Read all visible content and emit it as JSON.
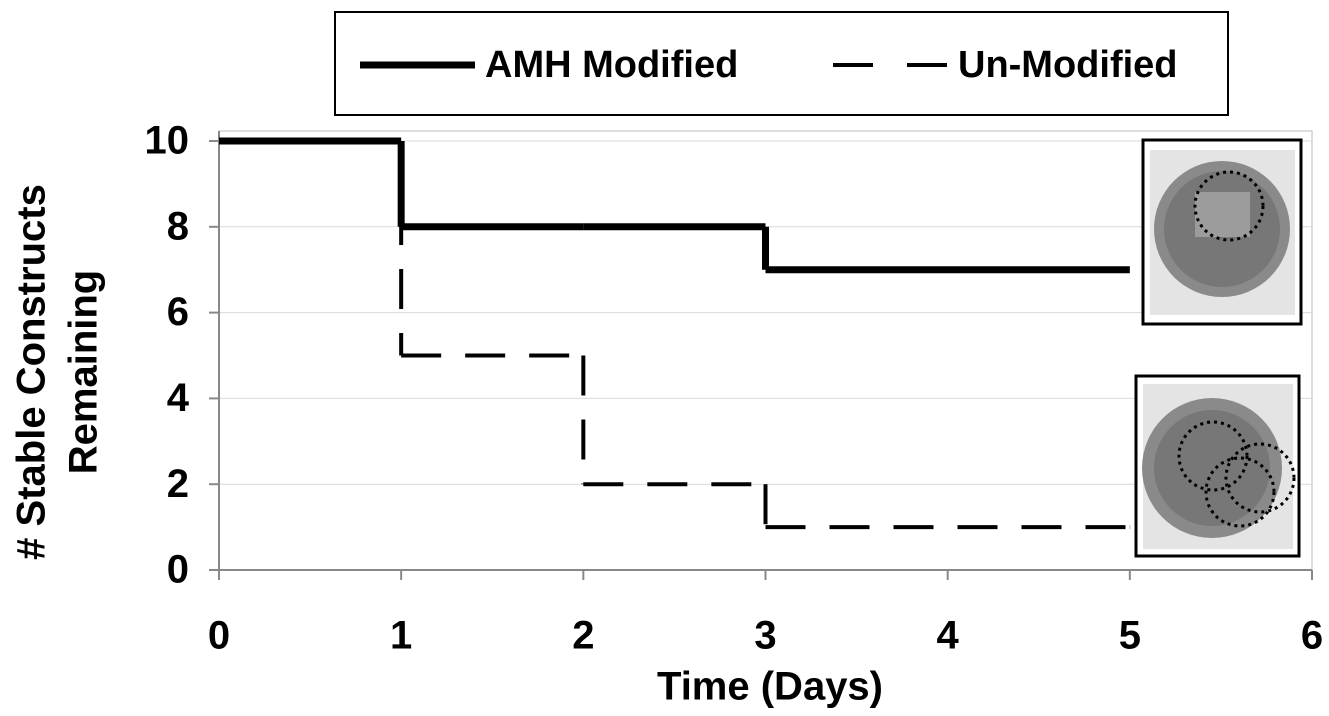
{
  "chart_data": {
    "type": "step",
    "x_label": "Time (Days)",
    "y_label": [
      "# Stable Constructs",
      "Remaining"
    ],
    "x": [
      0,
      1,
      2,
      3,
      5
    ],
    "series": [
      {
        "name": "AMH Modified",
        "color": "#000000",
        "dash": "solid",
        "values": [
          10,
          8,
          8,
          7,
          7
        ]
      },
      {
        "name": "Un-Modified",
        "color": "#000000",
        "dash": "dashed",
        "values": [
          10,
          5,
          2,
          1,
          1
        ]
      }
    ],
    "xlim": [
      0,
      6
    ],
    "xticks": [
      0,
      1,
      2,
      3,
      4,
      5,
      6
    ],
    "ylim": [
      0,
      10
    ],
    "yticks": [
      0,
      2,
      4,
      6,
      8,
      10
    ],
    "grid": true
  }
}
